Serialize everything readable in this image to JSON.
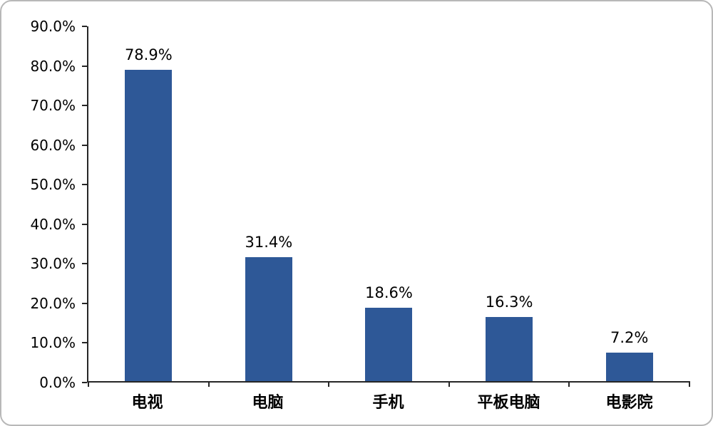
{
  "chart_data": {
    "type": "bar",
    "title": "",
    "xlabel": "",
    "ylabel": "",
    "categories": [
      "电视",
      "电脑",
      "手机",
      "平板电脑",
      "电影院"
    ],
    "values": [
      78.9,
      31.4,
      18.6,
      16.3,
      7.2
    ],
    "value_labels": [
      "78.9%",
      "31.4%",
      "18.6%",
      "16.3%",
      "7.2%"
    ],
    "ylim": [
      0,
      90
    ],
    "ytick_step": 10,
    "ytick_labels": [
      "0.0%",
      "10.0%",
      "20.0%",
      "30.0%",
      "40.0%",
      "50.0%",
      "60.0%",
      "70.0%",
      "80.0%",
      "90.0%"
    ],
    "grid": false,
    "legend": false,
    "bar_color": "#2e5897",
    "axis_color": "#262626"
  }
}
